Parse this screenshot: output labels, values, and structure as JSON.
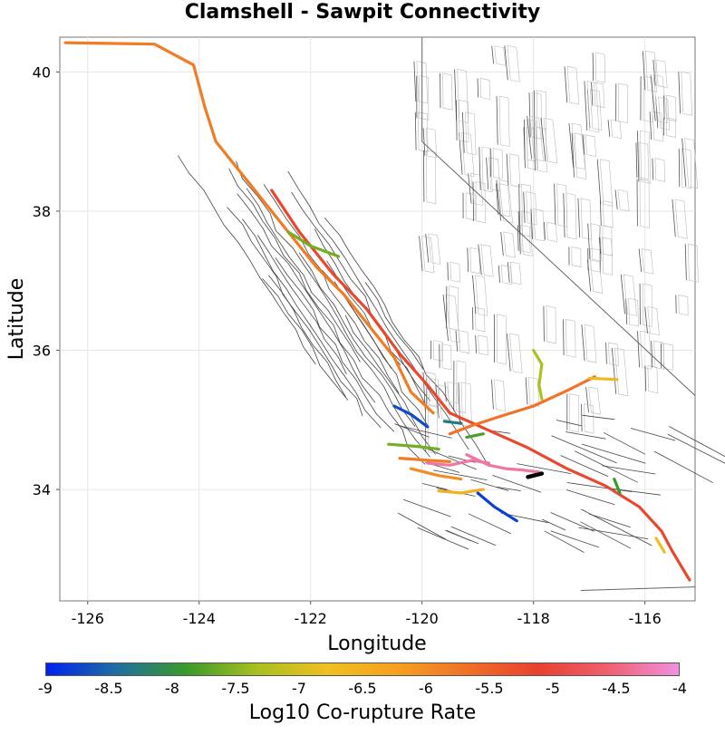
{
  "chart_data": {
    "type": "map",
    "title": "Clamshell - Sawpit Connectivity",
    "xlabel": "Longitude",
    "ylabel": "Latitude",
    "xlim": [
      -126.5,
      -115.1
    ],
    "ylim": [
      32.4,
      40.5
    ],
    "xticks": [
      "-126",
      "-124",
      "-122",
      "-120",
      "-118",
      "-116"
    ],
    "xtick_values": [
      -126,
      -124,
      -122,
      -120,
      -118,
      -116
    ],
    "yticks": [
      "34",
      "36",
      "38",
      "40"
    ],
    "ytick_values": [
      34,
      36,
      38,
      40
    ],
    "grid": true,
    "colorbar": {
      "label": "Log10 Co-rupture Rate",
      "range": [
        -9,
        -4
      ],
      "ticks": [
        "-9",
        "-8.5",
        "-8",
        "-7.5",
        "-7",
        "-6.5",
        "-6",
        "-5.5",
        "-5",
        "-4.5",
        "-4"
      ],
      "colors": [
        "#0022ee",
        "#1f6fa0",
        "#3a9a2a",
        "#a8c020",
        "#f0c020",
        "#f5a020",
        "#f07028",
        "#e84030",
        "#f06070",
        "#f090e0"
      ]
    },
    "source_fault": {
      "name_hidden": true,
      "color": "#000000",
      "path": [
        [
          -118.1,
          34.18
        ],
        [
          -117.85,
          34.23
        ]
      ]
    },
    "rupture_sections": [
      {
        "rate": -5.8,
        "path": [
          [
            -126.4,
            40.42
          ],
          [
            -124.8,
            40.4
          ],
          [
            -124.1,
            40.1
          ],
          [
            -123.9,
            39.5
          ],
          [
            -123.7,
            39.0
          ],
          [
            -123.3,
            38.6
          ],
          [
            -122.8,
            38.1
          ],
          [
            -122.4,
            37.7
          ],
          [
            -121.9,
            37.2
          ],
          [
            -121.4,
            36.8
          ],
          [
            -120.9,
            36.3
          ],
          [
            -120.5,
            35.9
          ],
          [
            -120.2,
            35.4
          ],
          [
            -119.8,
            35.1
          ]
        ]
      },
      {
        "rate": -5.2,
        "path": [
          [
            -122.7,
            38.3
          ],
          [
            -122.2,
            37.7
          ],
          [
            -121.6,
            37.1
          ],
          [
            -121.0,
            36.6
          ],
          [
            -120.4,
            35.95
          ],
          [
            -119.9,
            35.5
          ],
          [
            -119.5,
            35.1
          ],
          [
            -118.8,
            34.85
          ],
          [
            -118.1,
            34.6
          ],
          [
            -117.4,
            34.3
          ],
          [
            -116.7,
            34.05
          ],
          [
            -116.1,
            33.75
          ],
          [
            -115.7,
            33.4
          ],
          [
            -115.5,
            33.1
          ],
          [
            -115.2,
            32.7
          ]
        ]
      },
      {
        "rate": -5.7,
        "path": [
          [
            -119.5,
            34.8
          ],
          [
            -119.1,
            34.92
          ],
          [
            -118.6,
            35.05
          ],
          [
            -118.0,
            35.2
          ],
          [
            -117.4,
            35.42
          ],
          [
            -116.9,
            35.62
          ]
        ]
      },
      {
        "rate": -7.3,
        "path": [
          [
            -118.0,
            36.0
          ],
          [
            -117.85,
            35.8
          ],
          [
            -117.9,
            35.5
          ],
          [
            -117.85,
            35.3
          ]
        ]
      },
      {
        "rate": -6.6,
        "path": [
          [
            -117.0,
            35.6
          ],
          [
            -116.5,
            35.58
          ]
        ]
      },
      {
        "rate": -4.3,
        "path": [
          [
            -119.2,
            34.5
          ],
          [
            -118.8,
            34.35
          ],
          [
            -118.5,
            34.3
          ],
          [
            -118.2,
            34.28
          ],
          [
            -117.9,
            34.25
          ]
        ]
      },
      {
        "rate": -4.3,
        "path": [
          [
            -119.9,
            34.38
          ],
          [
            -119.5,
            34.35
          ],
          [
            -119.1,
            34.42
          ],
          [
            -118.8,
            34.38
          ]
        ]
      },
      {
        "rate": -5.8,
        "path": [
          [
            -120.4,
            34.45
          ],
          [
            -119.9,
            34.42
          ],
          [
            -119.5,
            34.4
          ]
        ]
      },
      {
        "rate": -6.0,
        "path": [
          [
            -120.2,
            34.3
          ],
          [
            -119.7,
            34.2
          ],
          [
            -119.3,
            34.15
          ]
        ]
      },
      {
        "rate": -7.6,
        "path": [
          [
            -120.6,
            34.65
          ],
          [
            -120.1,
            34.62
          ],
          [
            -119.7,
            34.58
          ]
        ]
      },
      {
        "rate": -8.7,
        "path": [
          [
            -120.5,
            35.2
          ],
          [
            -120.2,
            35.08
          ],
          [
            -119.9,
            34.9
          ]
        ]
      },
      {
        "rate": -8.3,
        "path": [
          [
            -119.6,
            34.98
          ],
          [
            -119.3,
            34.95
          ]
        ]
      },
      {
        "rate": -7.8,
        "path": [
          [
            -119.2,
            34.75
          ],
          [
            -118.9,
            34.8
          ]
        ]
      },
      {
        "rate": -8.8,
        "path": [
          [
            -119.0,
            33.95
          ],
          [
            -118.7,
            33.75
          ],
          [
            -118.3,
            33.55
          ]
        ]
      },
      {
        "rate": -6.5,
        "path": [
          [
            -119.7,
            33.98
          ],
          [
            -119.3,
            33.95
          ],
          [
            -118.9,
            34.0
          ]
        ]
      },
      {
        "rate": -7.9,
        "path": [
          [
            -116.55,
            34.15
          ],
          [
            -116.45,
            33.95
          ]
        ]
      },
      {
        "rate": -6.7,
        "path": [
          [
            -115.8,
            33.3
          ],
          [
            -115.65,
            33.1
          ]
        ]
      },
      {
        "rate": -7.6,
        "path": [
          [
            -122.4,
            37.7
          ],
          [
            -122.0,
            37.5
          ],
          [
            -121.5,
            37.35
          ]
        ]
      }
    ]
  }
}
